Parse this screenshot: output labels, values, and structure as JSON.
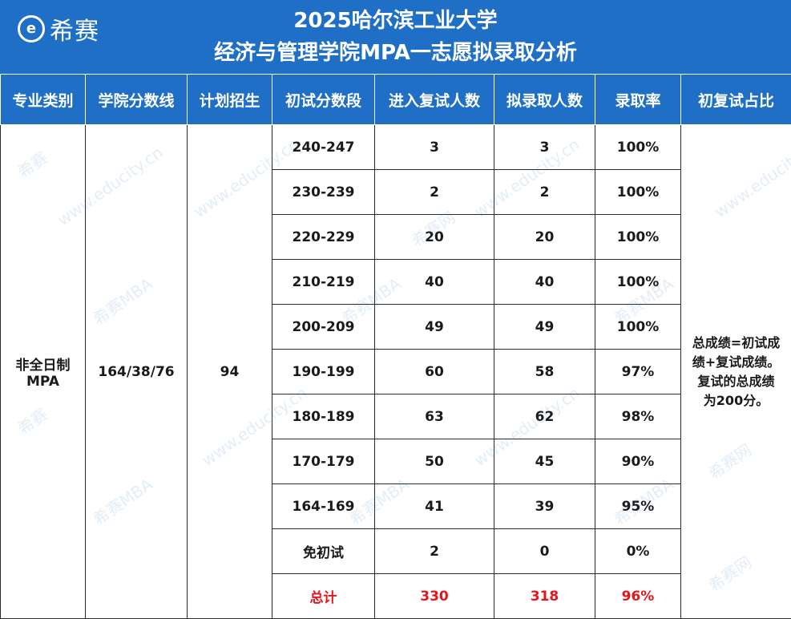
{
  "header": {
    "logo_symbol": "e",
    "logo_text": "希赛",
    "title_line1": "2025哈尔滨工业大学",
    "title_line2": "经济与管理学院MPA一志愿拟录取分析"
  },
  "table": {
    "columns": [
      "专业类别",
      "学院分数线",
      "计划招生",
      "初试分数段",
      "进入复试人数",
      "拟录取人数",
      "录取率",
      "初复试占比"
    ],
    "category": [
      "非全日制",
      "MPA"
    ],
    "college_cutoff": "164/38/76",
    "planned_enrollment": "94",
    "rows": [
      {
        "range": "240-247",
        "retest": "3",
        "admitted": "3",
        "rate": "100%"
      },
      {
        "range": "230-239",
        "retest": "2",
        "admitted": "2",
        "rate": "100%"
      },
      {
        "range": "220-229",
        "retest": "20",
        "admitted": "20",
        "rate": "100%"
      },
      {
        "range": "210-219",
        "retest": "40",
        "admitted": "40",
        "rate": "100%"
      },
      {
        "range": "200-209",
        "retest": "49",
        "admitted": "49",
        "rate": "100%"
      },
      {
        "range": "190-199",
        "retest": "60",
        "admitted": "58",
        "rate": "97%"
      },
      {
        "range": "180-189",
        "retest": "63",
        "admitted": "62",
        "rate": "98%"
      },
      {
        "range": "170-179",
        "retest": "50",
        "admitted": "45",
        "rate": "90%"
      },
      {
        "range": "164-169",
        "retest": "41",
        "admitted": "39",
        "rate": "95%"
      },
      {
        "range": "免初试",
        "retest": "2",
        "admitted": "0",
        "rate": "0%"
      }
    ],
    "total": {
      "range": "总计",
      "retest": "330",
      "admitted": "318",
      "rate": "96%"
    },
    "ratio_note": [
      "总成绩=初试成",
      "绩+复试成绩。",
      "复试的总成绩",
      "为200分。"
    ]
  },
  "colors": {
    "header_blue": "#1f6fc6",
    "total_red": "#e8141b"
  },
  "watermarks": [
    "希赛",
    "www.educity.cn",
    "希赛MBA",
    "希赛网"
  ]
}
